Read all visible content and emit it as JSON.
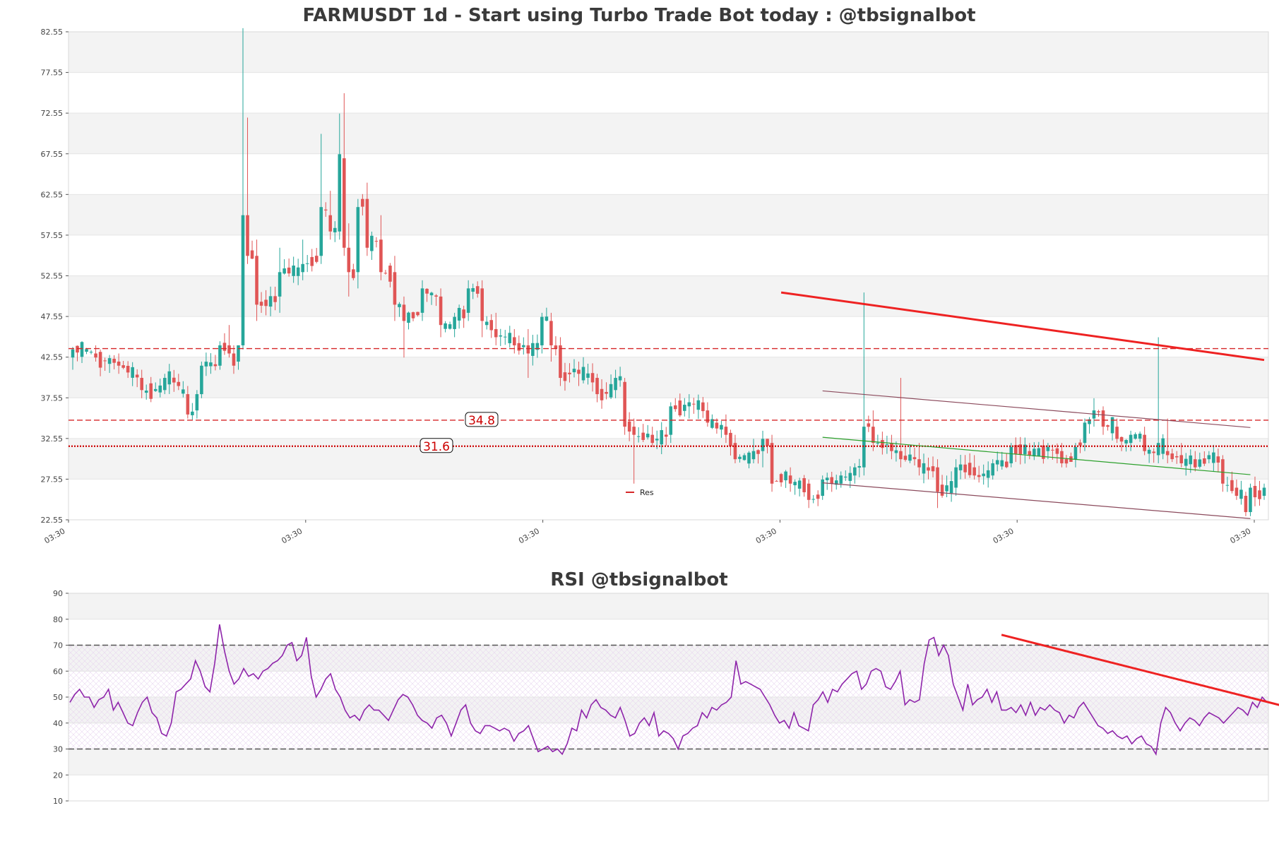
{
  "chart_data": [
    {
      "type": "candlestick",
      "title": "FARMUSDT 1d - Start using Turbo Trade Bot today : @tbsignalbot",
      "y_ticks": [
        "22.55",
        "27.55",
        "32.55",
        "37.55",
        "42.55",
        "47.55",
        "52.55",
        "57.55",
        "62.55",
        "67.55",
        "72.55",
        "77.55",
        "82.55"
      ],
      "ylim": [
        22.55,
        82.55
      ],
      "x_ticks": [
        "03:30",
        "03:30",
        "03:30",
        "03:30",
        "03:30",
        "03:30"
      ],
      "candle_count": 260,
      "legend": [
        {
          "label": "Res",
          "color": "#d62728"
        }
      ],
      "legend_position": "center-bottom",
      "levels": [
        {
          "label": "34.8",
          "value": 34.8,
          "style": "dashed",
          "color": "#d62728"
        },
        {
          "label": "31.6",
          "value": 31.6,
          "style": "dotted",
          "color": "#cc0000"
        },
        {
          "label": "",
          "value": 43.6,
          "style": "dashed",
          "color": "#d62728"
        }
      ],
      "trendlines": [
        {
          "x": [
            154,
            259
          ],
          "y": [
            50.5,
            42.2
          ],
          "color": "#ee2222",
          "width": "thick"
        },
        {
          "x": [
            163,
            256
          ],
          "y": [
            38.4,
            33.9
          ],
          "color": "#8b4a5c",
          "width": "thin"
        },
        {
          "x": [
            163,
            256
          ],
          "y": [
            32.7,
            28.1
          ],
          "color": "#2ca02c",
          "width": "thin"
        },
        {
          "x": [
            163,
            256
          ],
          "y": [
            27.1,
            22.7
          ],
          "color": "#8b4a5c",
          "width": "thin"
        }
      ],
      "ohlc_samples": [
        [
          0,
          42.5,
          43.8,
          41.0,
          43.5
        ],
        [
          5,
          43.0,
          44.0,
          42.0,
          42.5
        ],
        [
          10,
          42.0,
          43.0,
          40.5,
          41.5
        ],
        [
          15,
          40.0,
          41.0,
          37.5,
          38.5
        ],
        [
          20,
          38.5,
          40.5,
          38.0,
          40.0
        ],
        [
          23,
          39.5,
          40.5,
          38.5,
          39.0
        ],
        [
          25,
          38.0,
          39.0,
          35.0,
          35.5
        ],
        [
          27,
          36.0,
          38.5,
          35.0,
          38.0
        ],
        [
          28,
          38.0,
          42.0,
          37.5,
          41.5
        ],
        [
          32,
          41.5,
          44.5,
          41.0,
          44.0
        ],
        [
          34,
          44.0,
          46.5,
          42.5,
          43.0
        ],
        [
          35,
          43.0,
          44.0,
          40.5,
          41.5
        ],
        [
          36,
          42.0,
          44.0,
          41.0,
          44.0
        ],
        [
          37,
          44.0,
          83.0,
          43.5,
          60.0
        ],
        [
          38,
          60.0,
          72.0,
          54.0,
          55.0
        ],
        [
          40,
          55.0,
          57.0,
          47.0,
          49.0
        ],
        [
          45,
          50.0,
          56.0,
          48.0,
          53.0
        ],
        [
          50,
          53.0,
          57.0,
          52.0,
          54.0
        ],
        [
          54,
          55.0,
          70.0,
          54.0,
          61.0
        ],
        [
          56,
          60.0,
          63.0,
          57.0,
          58.0
        ],
        [
          58,
          58.0,
          72.5,
          57.0,
          67.5
        ],
        [
          59,
          67.0,
          75.0,
          55.0,
          56.0
        ],
        [
          60,
          56.0,
          59.0,
          50.0,
          53.0
        ],
        [
          62,
          53.0,
          62.0,
          51.0,
          61.0
        ],
        [
          64,
          62.0,
          64.0,
          55.0,
          56.0
        ],
        [
          67,
          57.0,
          60.0,
          52.0,
          53.0
        ],
        [
          70,
          53.0,
          55.0,
          47.0,
          49.0
        ],
        [
          72,
          49.0,
          50.0,
          42.5,
          47.0
        ],
        [
          76,
          48.0,
          52.0,
          47.0,
          51.0
        ],
        [
          80,
          50.0,
          51.0,
          45.0,
          46.5
        ],
        [
          83,
          46.0,
          48.0,
          45.0,
          47.5
        ],
        [
          86,
          48.0,
          52.0,
          47.0,
          51.0
        ],
        [
          89,
          51.0,
          52.0,
          45.0,
          47.0
        ],
        [
          92,
          46.0,
          48.0,
          44.0,
          45.0
        ],
        [
          96,
          45.0,
          46.0,
          43.0,
          44.0
        ],
        [
          99,
          44.0,
          46.0,
          40.0,
          43.0
        ],
        [
          102,
          44.0,
          48.0,
          43.0,
          47.5
        ],
        [
          104,
          47.0,
          48.0,
          42.0,
          44.0
        ],
        [
          106,
          44.0,
          45.0,
          39.0,
          40.0
        ],
        [
          110,
          41.0,
          42.0,
          39.0,
          40.5
        ],
        [
          114,
          40.0,
          40.5,
          37.0,
          38.0
        ],
        [
          118,
          38.5,
          41.0,
          37.5,
          40.0
        ],
        [
          120,
          39.5,
          40.0,
          33.0,
          34.0
        ],
        [
          122,
          34.0,
          35.0,
          27.0,
          33.0
        ],
        [
          126,
          33.0,
          34.0,
          31.5,
          32.0
        ],
        [
          130,
          33.0,
          37.0,
          32.0,
          36.5
        ],
        [
          134,
          36.5,
          38.0,
          35.0,
          37.0
        ],
        [
          138,
          36.0,
          37.0,
          34.0,
          34.5
        ],
        [
          142,
          34.0,
          35.5,
          32.0,
          33.0
        ],
        [
          144,
          32.0,
          33.0,
          29.5,
          30.0
        ],
        [
          148,
          30.0,
          32.5,
          29.5,
          31.0
        ],
        [
          150,
          31.0,
          33.5,
          29.0,
          32.5
        ],
        [
          152,
          32.0,
          33.0,
          26.0,
          27.0
        ],
        [
          156,
          28.0,
          29.0,
          26.0,
          27.0
        ],
        [
          160,
          27.0,
          27.5,
          24.0,
          25.0
        ],
        [
          163,
          25.5,
          28.0,
          25.0,
          27.5
        ],
        [
          167,
          27.0,
          28.5,
          26.5,
          28.0
        ],
        [
          170,
          28.0,
          29.5,
          27.0,
          29.0
        ],
        [
          172,
          29.0,
          50.5,
          28.0,
          34.0
        ],
        [
          174,
          34.0,
          36.0,
          31.0,
          32.0
        ],
        [
          178,
          32.0,
          33.0,
          30.0,
          31.0
        ],
        [
          180,
          31.0,
          40.0,
          29.0,
          30.0
        ],
        [
          184,
          30.0,
          32.0,
          28.0,
          29.0
        ],
        [
          188,
          29.0,
          30.0,
          24.0,
          26.0
        ],
        [
          192,
          26.5,
          30.0,
          25.5,
          29.0
        ],
        [
          196,
          29.0,
          30.5,
          27.5,
          28.0
        ],
        [
          200,
          28.0,
          30.0,
          27.5,
          29.5
        ],
        [
          204,
          29.5,
          32.0,
          29.0,
          31.5
        ],
        [
          208,
          31.0,
          32.0,
          30.0,
          30.5
        ],
        [
          212,
          31.0,
          32.0,
          30.0,
          31.5
        ],
        [
          215,
          31.0,
          32.0,
          29.0,
          29.5
        ],
        [
          218,
          30.0,
          32.0,
          29.0,
          31.5
        ],
        [
          220,
          32.0,
          35.0,
          31.0,
          34.5
        ],
        [
          222,
          35.0,
          37.5,
          34.0,
          36.0
        ],
        [
          224,
          36.0,
          36.5,
          33.0,
          34.0
        ],
        [
          227,
          34.0,
          35.0,
          32.0,
          32.5
        ],
        [
          230,
          32.0,
          33.5,
          31.0,
          33.0
        ],
        [
          233,
          33.0,
          34.0,
          30.5,
          31.0
        ],
        [
          236,
          30.5,
          45.0,
          29.5,
          32.0
        ],
        [
          238,
          31.0,
          35.0,
          29.5,
          30.5
        ],
        [
          241,
          30.5,
          32.0,
          29.0,
          29.5
        ],
        [
          244,
          30.0,
          31.0,
          28.5,
          29.0
        ],
        [
          247,
          30.0,
          31.0,
          29.5,
          30.5
        ],
        [
          250,
          30.0,
          30.5,
          26.0,
          27.0
        ],
        [
          253,
          26.5,
          27.5,
          25.0,
          25.5
        ],
        [
          255,
          25.5,
          26.0,
          23.0,
          23.5
        ],
        [
          256,
          23.5,
          27.0,
          23.0,
          26.5
        ],
        [
          259,
          25.5,
          27.0,
          25.0,
          26.5
        ]
      ]
    },
    {
      "type": "line",
      "title": "RSI @tbsignalbot",
      "y_ticks": [
        "10",
        "20",
        "30",
        "40",
        "50",
        "60",
        "70",
        "80",
        "90"
      ],
      "ylim": [
        10,
        90
      ],
      "series": [
        {
          "color": "#8e24aa",
          "values": [
            48,
            51,
            53,
            50,
            50,
            46,
            49,
            50,
            53,
            45,
            48,
            44,
            40,
            39,
            44,
            48,
            50,
            44,
            42,
            36,
            35,
            40,
            52,
            53,
            55,
            57,
            64,
            60,
            54,
            52,
            63,
            78,
            68,
            60,
            55,
            57,
            61,
            58,
            59,
            57,
            60,
            61,
            63,
            64,
            66,
            70,
            71,
            64,
            66,
            73,
            58,
            50,
            53,
            57,
            59,
            53,
            50,
            45,
            42,
            43,
            41,
            45,
            47,
            45,
            45,
            43,
            41,
            45,
            49,
            51,
            50,
            47,
            43,
            41,
            40,
            38,
            42,
            43,
            40,
            35,
            40,
            45,
            47,
            40,
            37,
            36,
            39,
            39,
            38,
            37,
            38,
            37,
            33,
            36,
            37,
            39,
            34,
            29,
            30,
            31,
            29,
            30,
            28,
            32,
            38,
            37,
            45,
            42,
            47,
            49,
            46,
            45,
            43,
            42,
            46,
            41,
            35,
            36,
            40,
            42,
            39,
            44,
            35,
            37,
            36,
            34,
            30,
            35,
            36,
            38,
            39,
            44,
            42,
            46,
            45,
            47,
            48,
            50,
            64,
            55,
            56,
            55,
            54,
            53,
            50,
            47,
            43,
            40,
            41,
            38,
            44,
            39,
            38,
            37,
            47,
            49,
            52,
            48,
            53,
            52,
            55,
            57,
            59,
            60,
            53,
            55,
            60,
            61,
            60,
            54,
            53,
            56,
            60,
            47,
            49,
            48,
            49,
            63,
            72,
            73,
            66,
            70,
            66,
            55,
            50,
            45,
            55,
            47,
            49,
            50,
            53,
            48,
            52,
            45,
            45,
            46,
            44,
            47,
            43,
            48,
            43,
            46,
            45,
            47,
            45,
            44,
            40,
            43,
            42,
            46,
            48,
            45,
            42,
            39,
            38,
            36,
            37,
            35,
            34,
            35,
            32,
            34,
            35,
            32,
            31,
            28,
            40,
            46,
            44,
            40,
            37,
            40,
            42,
            41,
            39,
            42,
            44,
            43,
            42,
            40,
            42,
            44,
            46,
            45,
            43,
            48,
            46,
            50,
            48
          ]
        }
      ],
      "levels": [
        {
          "value": 70,
          "style": "dashed",
          "color": "#555555"
        },
        {
          "value": 30,
          "style": "dashed",
          "color": "#555555"
        }
      ],
      "trendlines": [
        {
          "x": [
            193,
            259
          ],
          "y": [
            74,
            43
          ],
          "color": "#ee2222",
          "width": "thick"
        }
      ]
    }
  ]
}
